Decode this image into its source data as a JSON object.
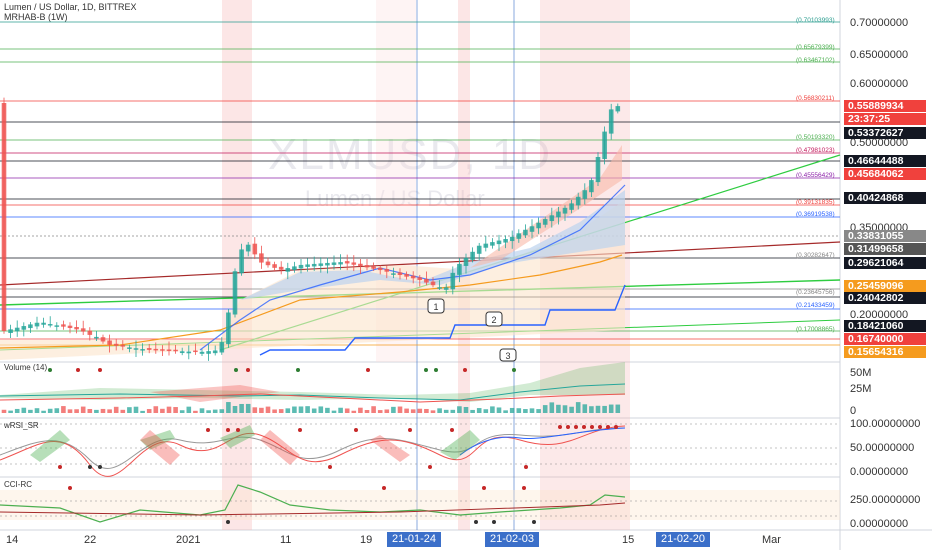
{
  "header": {
    "title": "Lumen / US Dollar, 1D, BITTREX",
    "indicator": "MRHAB-B (1W)"
  },
  "watermark": {
    "symbol": "XLMUSD, 1D",
    "name": "Lumen / US Dollar"
  },
  "price_axis": [
    "0.70000000",
    "0.65000000",
    "0.60000000",
    "0.50000000",
    "0.35000000",
    "0.20000000"
  ],
  "price_tags": [
    {
      "value": "0.55889934",
      "color": "#f0413d"
    },
    {
      "value": "23:37:25",
      "color": "#f0413d"
    },
    {
      "value": "0.53372627",
      "color": "#131722"
    },
    {
      "value": "0.46644488",
      "color": "#131722"
    },
    {
      "value": "0.45684062",
      "color": "#f0413d"
    },
    {
      "value": "0.40424868",
      "color": "#131722"
    },
    {
      "value": "0.33831055",
      "color": "#888888"
    },
    {
      "value": "0.31499658",
      "color": "#555555"
    },
    {
      "value": "0.29621064",
      "color": "#131722"
    },
    {
      "value": "0.25459096",
      "color": "#f59b1e"
    },
    {
      "value": "0.24042802",
      "color": "#131722"
    },
    {
      "value": "0.18421060",
      "color": "#131722"
    },
    {
      "value": "0.16740000",
      "color": "#f0413d"
    },
    {
      "value": "0.15654316",
      "color": "#f59b1e"
    }
  ],
  "fib_labels": [
    {
      "value": "(0.70103993)",
      "color": "#2a9d8f"
    },
    {
      "value": "(0.65679399)",
      "color": "#4caf50"
    },
    {
      "value": "(0.63467102)",
      "color": "#4caf50"
    },
    {
      "value": "(0.56830211)",
      "color": "#f0413d"
    },
    {
      "value": "(0.50193320)",
      "color": "#4caf50"
    },
    {
      "value": "(0.47981023)",
      "color": "#c2185b"
    },
    {
      "value": "(0.45556429)",
      "color": "#8e24aa"
    },
    {
      "value": "(0.39131835)",
      "color": "#f0413d"
    },
    {
      "value": "(0.36919538)",
      "color": "#2962ff"
    },
    {
      "value": "(0.30282647)",
      "color": "#888888"
    },
    {
      "value": "(0.23645756)",
      "color": "#888888"
    },
    {
      "value": "(0.21433459)",
      "color": "#2962ff"
    },
    {
      "value": "(0.17008865)",
      "color": "#4caf50"
    }
  ],
  "wave_labels": [
    "1",
    "2",
    "3"
  ],
  "volume": {
    "label": "Volume (14)",
    "axis": [
      "50M",
      "25M",
      "0"
    ]
  },
  "wrsi": {
    "label": "wRSI_SR",
    "axis": [
      "100.00000000",
      "50.00000000",
      "0.00000000"
    ]
  },
  "cci": {
    "label": "CCI-RC",
    "axis": [
      "250.00000000",
      "0.00000000"
    ]
  },
  "time_axis": [
    {
      "text": "14",
      "hl": false
    },
    {
      "text": "22",
      "hl": false
    },
    {
      "text": "2021",
      "hl": false
    },
    {
      "text": "11",
      "hl": false
    },
    {
      "text": "19",
      "hl": false
    },
    {
      "text": "21-01-24",
      "hl": true
    },
    {
      "text": "21-02-03",
      "hl": true
    },
    {
      "text": "15",
      "hl": false
    },
    {
      "text": "21-02-20",
      "hl": true
    },
    {
      "text": "Mar",
      "hl": false
    }
  ],
  "colors": {
    "up": "#26a69a",
    "down": "#ef5350",
    "bull_fill": "#4caf50",
    "bear_fill": "#f0413d",
    "accent": "#2962ff"
  }
}
